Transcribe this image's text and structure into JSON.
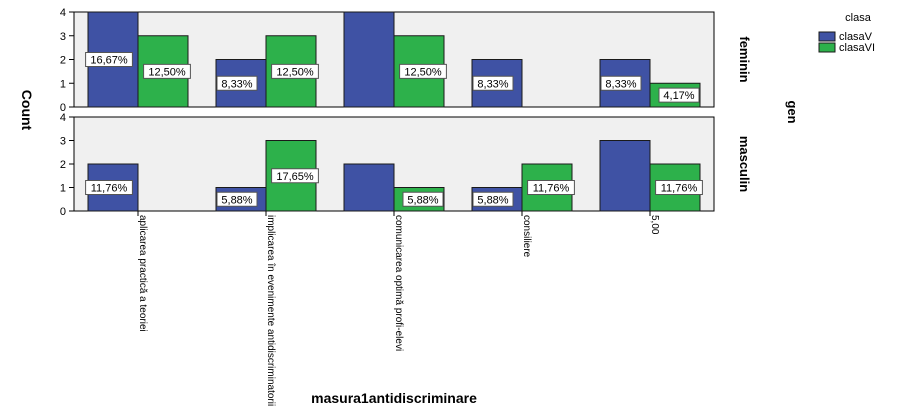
{
  "chart_data": {
    "type": "bar",
    "xlabel": "masura1antidiscriminare",
    "ylabel": "Count",
    "panel_label": "gen",
    "ylim": [
      0,
      4
    ],
    "yticks": [
      0,
      1,
      2,
      3,
      4
    ],
    "grid": false,
    "legend_position": "top-right",
    "categories": [
      "aplicarea practică a teoriei",
      "implicarea în evenimente antidiscriminatorii",
      "comunicarea optimă profi-elevi",
      "consiliere",
      "5,00"
    ],
    "legend": {
      "title": "clasa",
      "entries": [
        {
          "name": "clasaV",
          "color": "#3f52a4"
        },
        {
          "name": "clasaVI",
          "color": "#2db14b"
        }
      ]
    },
    "panels": [
      {
        "name": "feminin",
        "series": [
          {
            "name": "clasaV",
            "values": [
              4,
              2,
              4,
              2,
              2
            ],
            "labels": [
              "16,67%",
              "8,33%",
              "",
              "8,33%",
              "8,33%"
            ]
          },
          {
            "name": "clasaVI",
            "values": [
              3,
              3,
              3,
              0,
              1
            ],
            "labels": [
              "12,50%",
              "12,50%",
              "12,50%",
              "",
              "4,17%"
            ]
          }
        ]
      },
      {
        "name": "masculin",
        "series": [
          {
            "name": "clasaV",
            "values": [
              2,
              1,
              2,
              1,
              3
            ],
            "labels": [
              "11,76%",
              "5,88%",
              "",
              "5,88%",
              ""
            ]
          },
          {
            "name": "clasaVI",
            "values": [
              0,
              3,
              1,
              2,
              2
            ],
            "labels": [
              "",
              "17,65%",
              "5,88%",
              "11,76%",
              "11,76%"
            ]
          }
        ]
      }
    ]
  }
}
